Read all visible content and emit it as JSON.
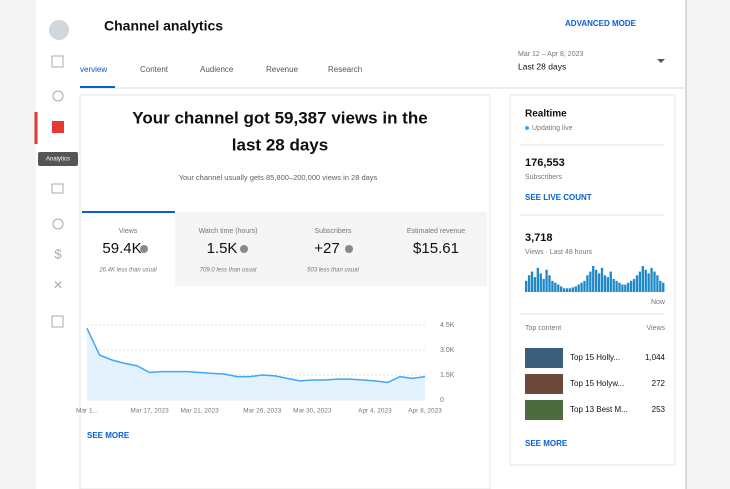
{
  "header": {
    "title": "Channel analytics",
    "advanced_mode": "ADVANCED MODE",
    "date_range": "Mar 12 – Apr 8, 2023",
    "period": "Last 28 days"
  },
  "sidebar": {
    "tooltip": "Analytics"
  },
  "tabs": [
    "verview",
    "Content",
    "Audience",
    "Revenue",
    "Research"
  ],
  "summary": {
    "headline": [
      "Your channel got 59,387 views in the",
      "last 28 days"
    ],
    "subtext": "Your channel usually gets 85,800–200,000 views in 28 days"
  },
  "metrics": [
    {
      "label": "Views",
      "value": "59.4K",
      "note": "26.4K less than usual"
    },
    {
      "label": "Watch time (hours)",
      "value": "1.5K",
      "note": "709.0 less than usual"
    },
    {
      "label": "Subscribers",
      "value": "+27",
      "note": "503 less than usual"
    },
    {
      "label": "Estimated revenue",
      "value": "$15.61"
    }
  ],
  "see_more": "SEE MORE",
  "realtime": {
    "title": "Realtime",
    "status": "Updating live",
    "subscribers": "176,553",
    "subscribers_label": "Subscribers",
    "see_live_count": "SEE LIVE COUNT",
    "views": "3,718",
    "views_label": "Views · Last 48 hours",
    "now": "Now",
    "top_content": "Top content",
    "views_header": "Views",
    "items": [
      {
        "title": "Top 15 Holly...",
        "views": "1,044"
      },
      {
        "title": "Top 15 Holyw...",
        "views": "272"
      },
      {
        "title": "Top 13 Best M...",
        "views": "253"
      }
    ],
    "see_more": "SEE MORE"
  },
  "chart_data": [
    {
      "type": "line",
      "color": "#3ea6ff",
      "categories": [
        "Mar 1...",
        null,
        null,
        null,
        null,
        "Mar 17, 2023",
        null,
        null,
        null,
        "Mar 21, 2023",
        null,
        null,
        null,
        null,
        "Mar 26, 2023",
        null,
        null,
        null,
        "Mar 30, 2023",
        null,
        null,
        null,
        null,
        "Apr 4, 2023",
        null,
        null,
        null,
        "Apr 8, 2023"
      ],
      "values": [
        4300,
        2700,
        2400,
        2200,
        2050,
        1650,
        1700,
        1700,
        1700,
        1650,
        1600,
        1550,
        1400,
        1400,
        1500,
        1450,
        1300,
        1150,
        1200,
        1200,
        1250,
        1250,
        1200,
        1150,
        1050,
        1400,
        1300,
        1400
      ],
      "ylim": [
        0,
        4500
      ],
      "yticks": [
        0,
        {
          "value": 1500,
          "label": "1.5K"
        },
        {
          "value": 3000,
          "label": "3.0K"
        },
        {
          "value": 4500,
          "label": "4.5K"
        }
      ],
      "grid": true
    },
    {
      "type": "bar",
      "color": "#1e88c8",
      "values": [
        60,
        90,
        110,
        80,
        130,
        100,
        70,
        120,
        90,
        60,
        50,
        40,
        30,
        20,
        20,
        20,
        25,
        30,
        40,
        50,
        60,
        90,
        110,
        140,
        120,
        100,
        130,
        90,
        80,
        110,
        70,
        60,
        50,
        40,
        40,
        50,
        60,
        70,
        90,
        110,
        140,
        120,
        100,
        130,
        110,
        90,
        60,
        50
      ]
    }
  ]
}
